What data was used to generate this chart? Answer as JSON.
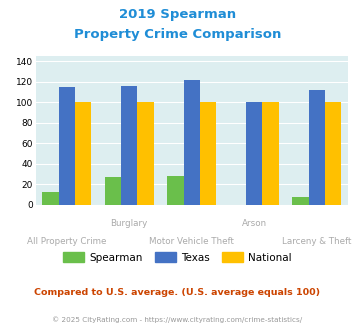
{
  "title_line1": "2019 Spearman",
  "title_line2": "Property Crime Comparison",
  "categories": [
    "All Property Crime",
    "Burglary",
    "Motor Vehicle Theft",
    "Arson",
    "Larceny & Theft"
  ],
  "spearman": [
    12,
    27,
    28,
    0,
    7
  ],
  "texas": [
    115,
    116,
    122,
    100,
    112
  ],
  "national": [
    100,
    100,
    100,
    100,
    100
  ],
  "spearman_color": "#6abf4b",
  "texas_color": "#4472c4",
  "national_color": "#ffc000",
  "ylim": [
    0,
    145
  ],
  "yticks": [
    0,
    20,
    40,
    60,
    80,
    100,
    120,
    140
  ],
  "bg_color": "#ddeef0",
  "title_color": "#1f8dd6",
  "note_text": "Compared to U.S. average. (U.S. average equals 100)",
  "note_color": "#cc4400",
  "footer_text": "© 2025 CityRating.com - https://www.cityrating.com/crime-statistics/",
  "footer_color": "#999999",
  "legend_labels": [
    "Spearman",
    "Texas",
    "National"
  ],
  "label_color": "#aaaaaa"
}
